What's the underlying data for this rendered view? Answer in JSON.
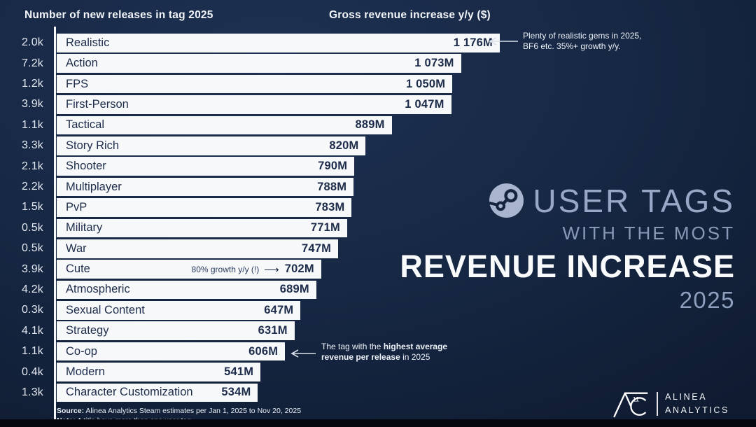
{
  "chart_data": {
    "type": "bar",
    "orientation": "horizontal",
    "left_header": "Number of new releases in tag 2025",
    "right_header": "Gross revenue increase y/y ($)",
    "value_unit": "M ($ millions, gross revenue increase y/y)",
    "max_value": 1176,
    "rows": [
      {
        "tag": "Realistic",
        "releases": "2.0k",
        "value": 1176,
        "label": "1 176M"
      },
      {
        "tag": "Action",
        "releases": "7.2k",
        "value": 1073,
        "label": "1 073M"
      },
      {
        "tag": "FPS",
        "releases": "1.2k",
        "value": 1050,
        "label": "1 050M"
      },
      {
        "tag": "First-Person",
        "releases": "3.9k",
        "value": 1047,
        "label": "1 047M"
      },
      {
        "tag": "Tactical",
        "releases": "1.1k",
        "value": 889,
        "label": "889M"
      },
      {
        "tag": "Story Rich",
        "releases": "3.3k",
        "value": 820,
        "label": "820M"
      },
      {
        "tag": "Shooter",
        "releases": "2.1k",
        "value": 790,
        "label": "790M"
      },
      {
        "tag": "Multiplayer",
        "releases": "2.2k",
        "value": 788,
        "label": "788M"
      },
      {
        "tag": "PvP",
        "releases": "1.5k",
        "value": 783,
        "label": "783M"
      },
      {
        "tag": "Military",
        "releases": "0.5k",
        "value": 771,
        "label": "771M"
      },
      {
        "tag": "War",
        "releases": "0.5k",
        "value": 747,
        "label": "747M"
      },
      {
        "tag": "Cute",
        "releases": "3.9k",
        "value": 702,
        "label": "702M",
        "inline_note": "80% growth y/y (!)",
        "inline_arrow": "⟶"
      },
      {
        "tag": "Atmospheric",
        "releases": "4.2k",
        "value": 689,
        "label": "689M"
      },
      {
        "tag": "Sexual Content",
        "releases": "0.3k",
        "value": 647,
        "label": "647M"
      },
      {
        "tag": "Strategy",
        "releases": "4.1k",
        "value": 631,
        "label": "631M"
      },
      {
        "tag": "Co-op",
        "releases": "1.1k",
        "value": 606,
        "label": "606M"
      },
      {
        "tag": "Modern",
        "releases": "0.4k",
        "value": 541,
        "label": "541M"
      },
      {
        "tag": "Character Customization",
        "releases": "1.3k",
        "value": 534,
        "label": "534M"
      }
    ],
    "annotations": [
      {
        "target": "Realistic",
        "text": "Plenty of realistic gems in 2025, BF6 etc. 35%+ growth y/y."
      },
      {
        "target": "Cute",
        "text": "80% growth y/y (!)"
      },
      {
        "target": "Co-op",
        "text": "The tag with the highest average revenue per release in 2025"
      }
    ],
    "legend_position": "none",
    "grid": false
  },
  "annotations": {
    "realistic": {
      "line1": "Plenty of realistic gems in 2025,",
      "line2": "BF6 etc. 35%+ growth y/y."
    },
    "coop": {
      "l1a": "The tag with the ",
      "l1b": "highest average",
      "l2a": "revenue per release",
      "l2b": " in 2025"
    }
  },
  "title_block": {
    "line1": "USER TAGS",
    "line2": "WITH THE MOST",
    "line3": "REVENUE INCREASE",
    "line4": "2025"
  },
  "footer": {
    "source_label": "Source:",
    "source_text": " Alinea Analytics Steam estimates per Jan 1, 2025 to Nov 20, 2025",
    "note_label": "Note:",
    "note_text": " A title have more than one user tag."
  },
  "logo": {
    "monogram_sub": "11",
    "line1": "ALINEA",
    "line2": "ANALYTICS"
  },
  "icons": {
    "steam": "steam-logo-circle",
    "left_arrow": "⟵",
    "right_arrow": "⟶"
  },
  "colors": {
    "background_top": "#1e3152",
    "background_bottom": "#081021",
    "bar_fill": "#f6f8fa",
    "bar_text": "#1d2c4a",
    "axis_line": "#f5f7fa",
    "title_muted": "#98a7c5",
    "title_strong": "#f8fafc",
    "annotation_text": "#eef2f8"
  }
}
